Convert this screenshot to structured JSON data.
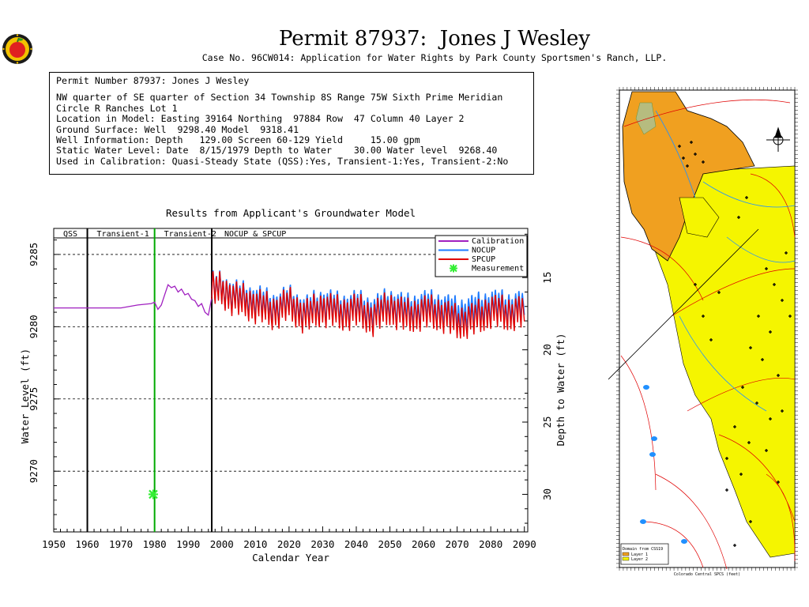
{
  "header": {
    "title": "Permit 87937:  Jones J Wesley",
    "case_line": "Case No. 96CW014: Application for Water Rights by Park County Sportsmen's Ranch, LLP."
  },
  "info": {
    "permit_line": "Permit Number 87937: Jones J Wesley",
    "location_line": "NW quarter of SE quarter of Section 34 Township 8S Range 75W Sixth Prime Meridian",
    "subdivision_line": "Circle R Ranches Lot 1",
    "model_location_line": "Location in Model: Easting 39164 Northing  97884 Row  47 Column 40 Layer 2",
    "ground_surface_line": "Ground Surface: Well  9298.40 Model  9318.41",
    "well_info_line": "Well Information: Depth   129.00 Screen 60-129 Yield     15.00 gpm",
    "static_level_line": "Static Water Level: Date  8/15/1979 Depth to Water    30.00 Water level  9268.40",
    "calibration_line": "Used in Calibration: Quasi-Steady State (QSS):Yes, Transient-1:Yes, Transient-2:No"
  },
  "colors": {
    "calibration": "#a020c0",
    "nocup": "#1e7bff",
    "spcup": "#e00000",
    "measurement": "#33ee33",
    "period_line_green": "#00aa00",
    "map_orange": "#f0a020",
    "map_yellow": "#f5f500",
    "map_road": "#e00000"
  },
  "chart_data": {
    "type": "line",
    "title": "Results from Applicant's Groundwater Model",
    "xlabel": "Calendar Year",
    "ylabel": "Water Level (ft)",
    "y2label": "Depth to Water (ft)",
    "xlim": [
      1950,
      2091
    ],
    "ylim": [
      9265.8,
      9286.8
    ],
    "xticks": [
      1950,
      1960,
      1970,
      1980,
      1990,
      2000,
      2010,
      2020,
      2030,
      2040,
      2050,
      2060,
      2070,
      2080,
      2090
    ],
    "yticks": [
      9270,
      9275,
      9280,
      9285
    ],
    "y2ticks": [
      15,
      20,
      25,
      30
    ],
    "periods": [
      {
        "label": "QSS",
        "start": 1950,
        "end": 1960
      },
      {
        "label": "Transient-1",
        "start": 1960,
        "end": 1980
      },
      {
        "label": "Transient-2",
        "start": 1980,
        "end": 1997
      },
      {
        "label": "NOCUP  &  SPCUP",
        "start": 1997,
        "end": 2091
      }
    ],
    "period_boundaries": [
      1960,
      1980,
      1997
    ],
    "legend": [
      "Calibration",
      "NOCUP",
      "SPCUP",
      "Measurement"
    ],
    "legend_position": "top-right",
    "grid": "dashed horizontal",
    "series": [
      {
        "name": "Calibration",
        "x": [
          1950,
          1970,
          1975,
          1979,
          1980,
          1981,
          1982,
          1983,
          1984,
          1985,
          1986,
          1987,
          1988,
          1989,
          1990,
          1991,
          1992,
          1993,
          1994,
          1995,
          1996,
          1997
        ],
        "y": [
          9281.3,
          9281.3,
          9281.5,
          9281.6,
          9281.7,
          9281.2,
          9281.5,
          9282.2,
          9282.9,
          9282.7,
          9282.8,
          9282.4,
          9282.6,
          9282.2,
          9282.3,
          9281.9,
          9281.8,
          9281.4,
          9281.6,
          9281.0,
          9280.8,
          9282.0
        ]
      },
      {
        "name": "NOCUP",
        "x": [
          1997,
          2000,
          2005,
          2010,
          2015,
          2020,
          2025,
          2030,
          2035,
          2040,
          2045,
          2050,
          2055,
          2060,
          2065,
          2070,
          2075,
          2080,
          2085,
          2090
        ],
        "y": [
          9282.7,
          9282.6,
          9282.0,
          9281.8,
          9281.3,
          9281.7,
          9281.0,
          9281.6,
          9281.2,
          9281.4,
          9281.0,
          9281.6,
          9281.1,
          9281.4,
          9281.3,
          9280.9,
          9281.1,
          9281.5,
          9281.3,
          9281.4
        ]
      },
      {
        "name": "SPCUP",
        "x": [
          1997,
          2000,
          2005,
          2010,
          2015,
          2020,
          2025,
          2030,
          2035,
          2040,
          2045,
          2050,
          2055,
          2060,
          2065,
          2070,
          2075,
          2080,
          2085,
          2090
        ],
        "y": [
          9282.6,
          9282.5,
          9281.8,
          9281.5,
          9281.0,
          9281.5,
          9280.7,
          9281.3,
          9280.9,
          9281.1,
          9280.6,
          9281.3,
          9280.7,
          9281.0,
          9280.9,
          9280.3,
          9280.5,
          9281.1,
          9280.9,
          9281.0
        ]
      },
      {
        "name": "Measurement",
        "x": [
          1979.6
        ],
        "y": [
          9268.4
        ]
      }
    ]
  },
  "map": {
    "title": "Colorado Central SPCS (feet)",
    "legend_title": "Domain from CSS19",
    "legend_items": [
      "Layer 1",
      "Layer 2"
    ]
  }
}
